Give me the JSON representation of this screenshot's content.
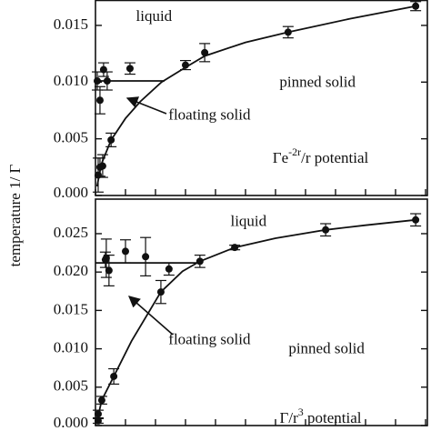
{
  "figure": {
    "ylabel": "temperature 1/ Γ"
  },
  "chart_data": [
    {
      "type": "scatter",
      "annotations": [
        {
          "text": [
            "liquid"
          ],
          "x": 1.95,
          "y": 0.0157
        },
        {
          "text": [
            "pinned solid"
          ],
          "x": 7.4,
          "y": 0.0099
        },
        {
          "text": [
            "floating solid"
          ],
          "x": 3.8,
          "y": 0.007
        },
        {
          "text": [
            "Γe",
            "-2r",
            "/r potential"
          ],
          "x": 7.5,
          "y": 0.0032
        }
      ],
      "xlim": [
        0,
        11.06
      ],
      "xticks": [
        0,
        1,
        2,
        3,
        4,
        5,
        6,
        7,
        8,
        9,
        10,
        11
      ],
      "ylim": [
        0,
        0.0172
      ],
      "yticks": [
        {
          "value": 0,
          "label": "0.000"
        },
        0.005,
        {
          "value": 0.01,
          "label": "0.010"
        },
        0.015
      ],
      "series": [
        {
          "style": "markers",
          "color": "#111111",
          "x": [
            0.06,
            0.15,
            0.27,
            0.39,
            1.15,
            3.0,
            3.64,
            6.42,
            10.67,
            0.09,
            0.15,
            0.24,
            0.52
          ],
          "values": [
            0.0101,
            0.0084,
            0.0111,
            0.0101,
            0.0112,
            0.0115,
            0.0126,
            0.0144,
            0.0167,
            0.0018,
            0.0025,
            0.0026,
            0.0049
          ],
          "errors": [
            0.0008,
            0.0012,
            0.0006,
            0.0008,
            0.0005,
            0.0004,
            0.0008,
            0.0005,
            0.0004,
            0.0015,
            0.0008,
            0.001,
            0.0006
          ]
        },
        {
          "style": "line",
          "color": "#111111",
          "x": [
            0,
            2.3
          ],
          "values": [
            0.0101,
            0.0101
          ]
        },
        {
          "style": "line",
          "color": "#111111",
          "x": [
            0.05,
            0.2,
            0.52,
            1.0,
            1.5,
            2.2,
            3.0,
            3.64,
            5,
            6.42,
            8.5,
            10.67
          ],
          "values": [
            0.0008,
            0.0028,
            0.0049,
            0.0068,
            0.0083,
            0.01,
            0.0113,
            0.0123,
            0.0135,
            0.0144,
            0.0156,
            0.0167
          ]
        }
      ]
    },
    {
      "type": "scatter",
      "annotations": [
        {
          "text": [
            "liquid"
          ],
          "x": 5.1,
          "y": 0.0265
        },
        {
          "text": [
            "pinned solid"
          ],
          "x": 7.7,
          "y": 0.0099
        },
        {
          "text": [
            "floating solid"
          ],
          "x": 3.8,
          "y": 0.0111
        },
        {
          "text": [
            "Γ/r",
            "3",
            " potential"
          ],
          "x": 7.5,
          "y": 0.0008
        }
      ],
      "xlim": [
        0,
        11.06
      ],
      "xticks": [
        0,
        1,
        2,
        3,
        4,
        5,
        6,
        7,
        8,
        9,
        10,
        11
      ],
      "ylim": [
        0,
        0.0295
      ],
      "yticks": [
        {
          "value": 0,
          "label": "0.000"
        },
        0.005,
        {
          "value": 0.01,
          "label": "0.010"
        },
        0.015,
        {
          "value": 0.02,
          "label": "0.020"
        },
        0.025
      ],
      "series": [
        {
          "style": "markers",
          "color": "#111111",
          "x": [
            0.36,
            0.33,
            0.45,
            1.0,
            1.67,
            2.45,
            3.48,
            4.64,
            7.67,
            10.67,
            2.18,
            0.61,
            0.21,
            0.09,
            0.09
          ],
          "values": [
            0.0218,
            0.0216,
            0.0202,
            0.0227,
            0.022,
            0.0204,
            0.0214,
            0.0232,
            0.0255,
            0.0268,
            0.0174,
            0.0064,
            0.0033,
            0.0015,
            0.0006
          ],
          "errors": [
            0.0025,
            0.001,
            0.002,
            0.0015,
            0.0025,
            0.0008,
            0.0008,
            0.0003,
            0.0008,
            0.0008,
            0.0015,
            0.001,
            0.0005,
            0.0005,
            0.0003
          ]
        },
        {
          "style": "line",
          "color": "#111111",
          "x": [
            0,
            3.5
          ],
          "values": [
            0.0212,
            0.0212
          ]
        },
        {
          "style": "line",
          "color": "#111111",
          "x": [
            0.03,
            0.21,
            0.61,
            1.2,
            2.18,
            2.9,
            3.48,
            4.64,
            6,
            7.67,
            9,
            10.67
          ],
          "values": [
            0.0002,
            0.0033,
            0.0064,
            0.011,
            0.0174,
            0.0201,
            0.0214,
            0.0232,
            0.0244,
            0.0255,
            0.0261,
            0.0268
          ]
        }
      ]
    }
  ]
}
